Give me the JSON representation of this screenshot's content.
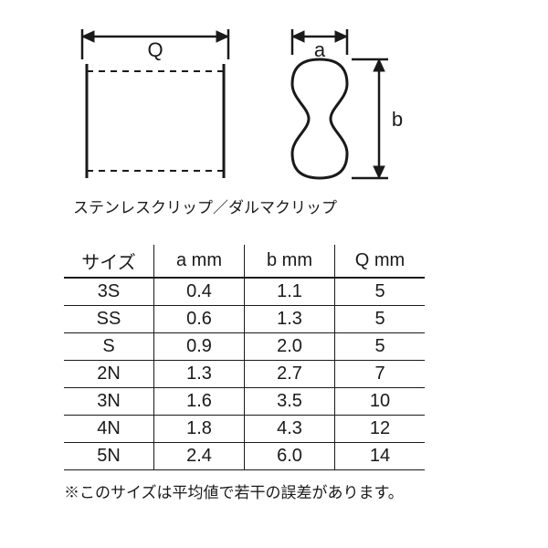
{
  "diagram": {
    "label_Q": "Q",
    "label_a": "a",
    "label_b": "b",
    "caption": "ステンレスクリップ／ダルマクリップ",
    "stroke": "#1a1a1a",
    "stroke_width": 3
  },
  "table": {
    "columns": [
      "サイズ",
      "a mm",
      "b mm",
      "Q mm"
    ],
    "rows": [
      [
        "3S",
        "0.4",
        "1.1",
        "5"
      ],
      [
        "SS",
        "0.6",
        "1.3",
        "5"
      ],
      [
        "S",
        "0.9",
        "2.0",
        "5"
      ],
      [
        "2N",
        "1.3",
        "2.7",
        "7"
      ],
      [
        "3N",
        "1.6",
        "3.5",
        "10"
      ],
      [
        "4N",
        "1.8",
        "4.3",
        "12"
      ],
      [
        "5N",
        "2.4",
        "6.0",
        "14"
      ]
    ]
  },
  "footnote": "※このサイズは平均値で若干の誤差があります。"
}
